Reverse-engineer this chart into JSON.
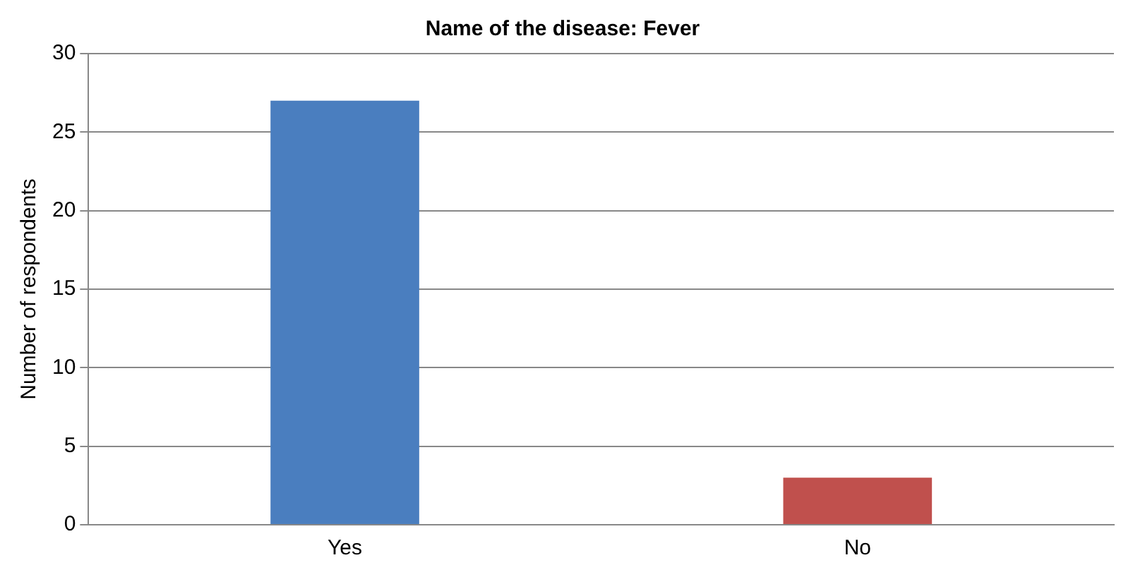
{
  "chart_data": {
    "type": "bar",
    "title": "Name of the disease: Fever",
    "ylabel": "Number of respondents",
    "categories": [
      "Yes",
      "No"
    ],
    "values": [
      27,
      3
    ],
    "colors": [
      "#4a7ebf",
      "#c0504d"
    ],
    "ylim": [
      0,
      30
    ],
    "yticks": [
      0,
      5,
      10,
      15,
      20,
      25,
      30
    ],
    "grid": "y",
    "legend": false
  }
}
